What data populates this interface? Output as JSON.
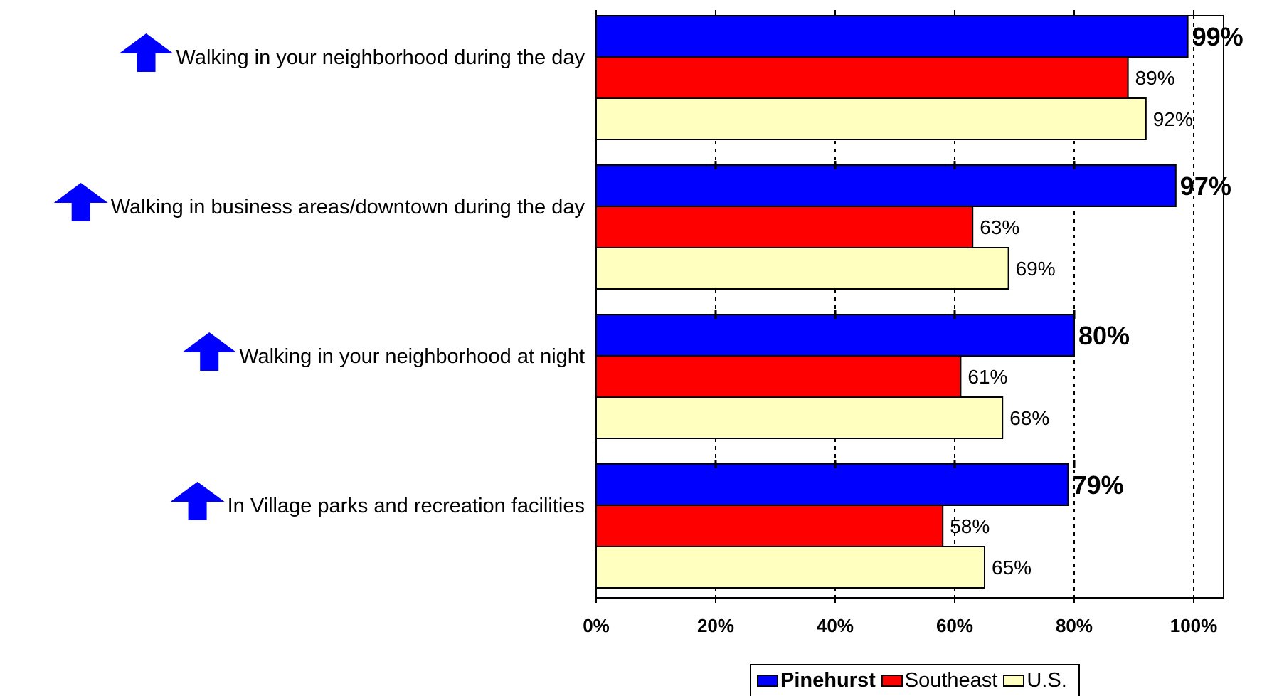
{
  "chart_data": {
    "type": "bar",
    "orientation": "horizontal",
    "categories": [
      "Walking in your neighborhood during the day",
      "Walking in business areas/downtown during the day",
      "Walking in your neighborhood at night",
      "In Village parks and recreation facilities"
    ],
    "series": [
      {
        "name": "Pinehurst",
        "color": "#0000ff",
        "values": [
          99,
          97,
          80,
          79
        ],
        "labels": [
          "99%",
          "97%",
          "80%",
          "79%"
        ]
      },
      {
        "name": "Southeast",
        "color": "#ff0000",
        "values": [
          89,
          63,
          61,
          58
        ],
        "labels": [
          "89%",
          "63%",
          "61%",
          "58%"
        ]
      },
      {
        "name": "U.S.",
        "color": "#ffffc0",
        "values": [
          92,
          69,
          68,
          65
        ],
        "labels": [
          "92%",
          "69%",
          "68%",
          "65%"
        ]
      }
    ],
    "xlim": [
      0,
      105
    ],
    "ticks": [
      0,
      20,
      40,
      60,
      80,
      100
    ],
    "tick_labels": [
      "0%",
      "20%",
      "40%",
      "60%",
      "80%",
      "100%"
    ],
    "grid": "dashed vertical",
    "legend": "bottom",
    "annotations": {
      "category_marker": "up-arrow-icon",
      "marker_color": "#0000ff"
    }
  }
}
